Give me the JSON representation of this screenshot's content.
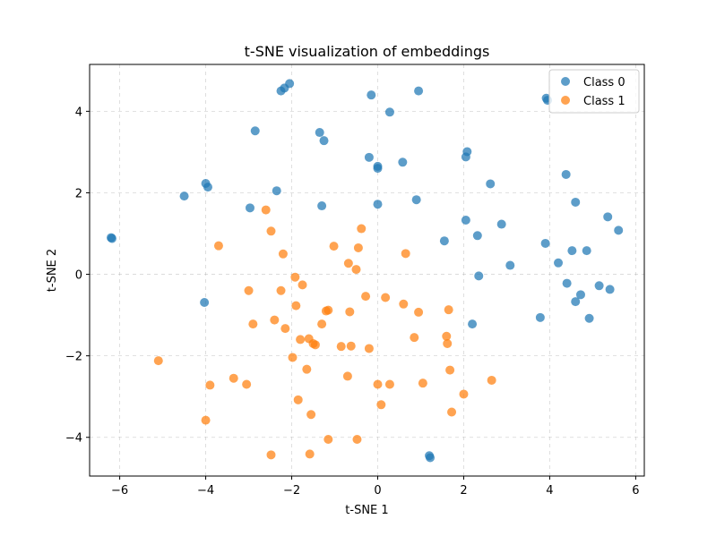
{
  "chart_data": {
    "type": "scatter",
    "title": "t-SNE visualization of embeddings",
    "xlabel": "t-SNE 1",
    "ylabel": "t-SNE 2",
    "xlim": [
      -6.7,
      6.2
    ],
    "ylim": [
      -4.95,
      5.15
    ],
    "xticks": [
      -6,
      -4,
      -2,
      0,
      2,
      4,
      6
    ],
    "yticks": [
      -4,
      -2,
      0,
      2,
      4
    ],
    "xtick_labels": [
      "−6",
      "−4",
      "−2",
      "0",
      "2",
      "4",
      "6"
    ],
    "ytick_labels": [
      "−4",
      "−2",
      "0",
      "2",
      "4"
    ],
    "grid": true,
    "legend_position": "top-right",
    "series": [
      {
        "name": "Class 0",
        "color": "#1f77b4",
        "points": [
          [
            -6.2,
            0.9
          ],
          [
            -6.18,
            0.88
          ],
          [
            -4.5,
            1.92
          ],
          [
            -4.0,
            2.23
          ],
          [
            -3.95,
            2.14
          ],
          [
            -4.03,
            -0.69
          ],
          [
            -2.97,
            1.63
          ],
          [
            -2.85,
            3.52
          ],
          [
            -2.35,
            2.05
          ],
          [
            -2.25,
            4.5
          ],
          [
            -2.17,
            4.57
          ],
          [
            -2.05,
            4.68
          ],
          [
            -1.35,
            3.48
          ],
          [
            -1.3,
            1.68
          ],
          [
            -1.25,
            3.28
          ],
          [
            -0.2,
            2.87
          ],
          [
            -0.15,
            4.4
          ],
          [
            0.0,
            2.65
          ],
          [
            0.0,
            2.6
          ],
          [
            0.0,
            1.72
          ],
          [
            0.28,
            3.98
          ],
          [
            0.58,
            2.75
          ],
          [
            0.9,
            1.83
          ],
          [
            0.95,
            4.5
          ],
          [
            1.2,
            -4.45
          ],
          [
            1.22,
            -4.5
          ],
          [
            1.55,
            0.82
          ],
          [
            2.05,
            1.33
          ],
          [
            2.05,
            2.88
          ],
          [
            2.08,
            3.01
          ],
          [
            2.2,
            -1.22
          ],
          [
            2.32,
            0.95
          ],
          [
            2.35,
            -0.04
          ],
          [
            2.62,
            2.22
          ],
          [
            2.88,
            1.23
          ],
          [
            3.08,
            0.22
          ],
          [
            3.78,
            -1.06
          ],
          [
            3.9,
            0.76
          ],
          [
            3.92,
            4.32
          ],
          [
            3.95,
            4.27
          ],
          [
            4.2,
            0.28
          ],
          [
            4.38,
            2.45
          ],
          [
            4.4,
            -0.22
          ],
          [
            4.52,
            0.58
          ],
          [
            4.6,
            1.77
          ],
          [
            4.6,
            -0.67
          ],
          [
            4.72,
            -0.5
          ],
          [
            4.86,
            0.58
          ],
          [
            4.92,
            -1.08
          ],
          [
            5.15,
            -0.28
          ],
          [
            5.35,
            1.41
          ],
          [
            5.4,
            -0.37
          ],
          [
            5.6,
            1.08
          ]
        ]
      },
      {
        "name": "Class 1",
        "color": "#ff7f0e",
        "points": [
          [
            -5.1,
            -2.12
          ],
          [
            -4.0,
            -3.58
          ],
          [
            -3.9,
            -2.72
          ],
          [
            -3.7,
            0.7
          ],
          [
            -3.35,
            -2.55
          ],
          [
            -3.05,
            -2.7
          ],
          [
            -3.0,
            -0.4
          ],
          [
            -2.9,
            -1.22
          ],
          [
            -2.6,
            1.58
          ],
          [
            -2.48,
            1.06
          ],
          [
            -2.48,
            -4.43
          ],
          [
            -2.4,
            -1.12
          ],
          [
            -2.25,
            -0.4
          ],
          [
            -2.2,
            0.5
          ],
          [
            -2.15,
            -1.33
          ],
          [
            -1.98,
            -2.04
          ],
          [
            -1.92,
            -0.07
          ],
          [
            -1.9,
            -0.77
          ],
          [
            -1.85,
            -3.08
          ],
          [
            -1.8,
            -1.6
          ],
          [
            -1.75,
            -0.26
          ],
          [
            -1.65,
            -2.33
          ],
          [
            -1.6,
            -1.58
          ],
          [
            -1.58,
            -4.41
          ],
          [
            -1.55,
            -3.44
          ],
          [
            -1.5,
            -1.7
          ],
          [
            -1.45,
            -1.73
          ],
          [
            -1.3,
            -1.22
          ],
          [
            -1.2,
            -0.9
          ],
          [
            -1.15,
            -0.88
          ],
          [
            -1.15,
            -4.05
          ],
          [
            -1.02,
            0.69
          ],
          [
            -0.85,
            -1.77
          ],
          [
            -0.7,
            -2.5
          ],
          [
            -0.68,
            0.27
          ],
          [
            -0.65,
            -0.92
          ],
          [
            -0.62,
            -1.76
          ],
          [
            -0.5,
            0.12
          ],
          [
            -0.48,
            -4.05
          ],
          [
            -0.45,
            0.65
          ],
          [
            -0.38,
            1.12
          ],
          [
            -0.28,
            -0.54
          ],
          [
            -0.2,
            -1.82
          ],
          [
            0.0,
            -2.7
          ],
          [
            0.08,
            -3.2
          ],
          [
            0.18,
            -0.57
          ],
          [
            0.28,
            -2.7
          ],
          [
            0.6,
            -0.73
          ],
          [
            0.65,
            0.51
          ],
          [
            0.85,
            -1.55
          ],
          [
            0.95,
            -0.93
          ],
          [
            1.05,
            -2.67
          ],
          [
            1.6,
            -1.52
          ],
          [
            1.62,
            -1.7
          ],
          [
            1.65,
            -0.87
          ],
          [
            1.68,
            -2.35
          ],
          [
            1.72,
            -3.38
          ],
          [
            2.0,
            -2.94
          ],
          [
            2.65,
            -2.6
          ]
        ]
      }
    ]
  }
}
